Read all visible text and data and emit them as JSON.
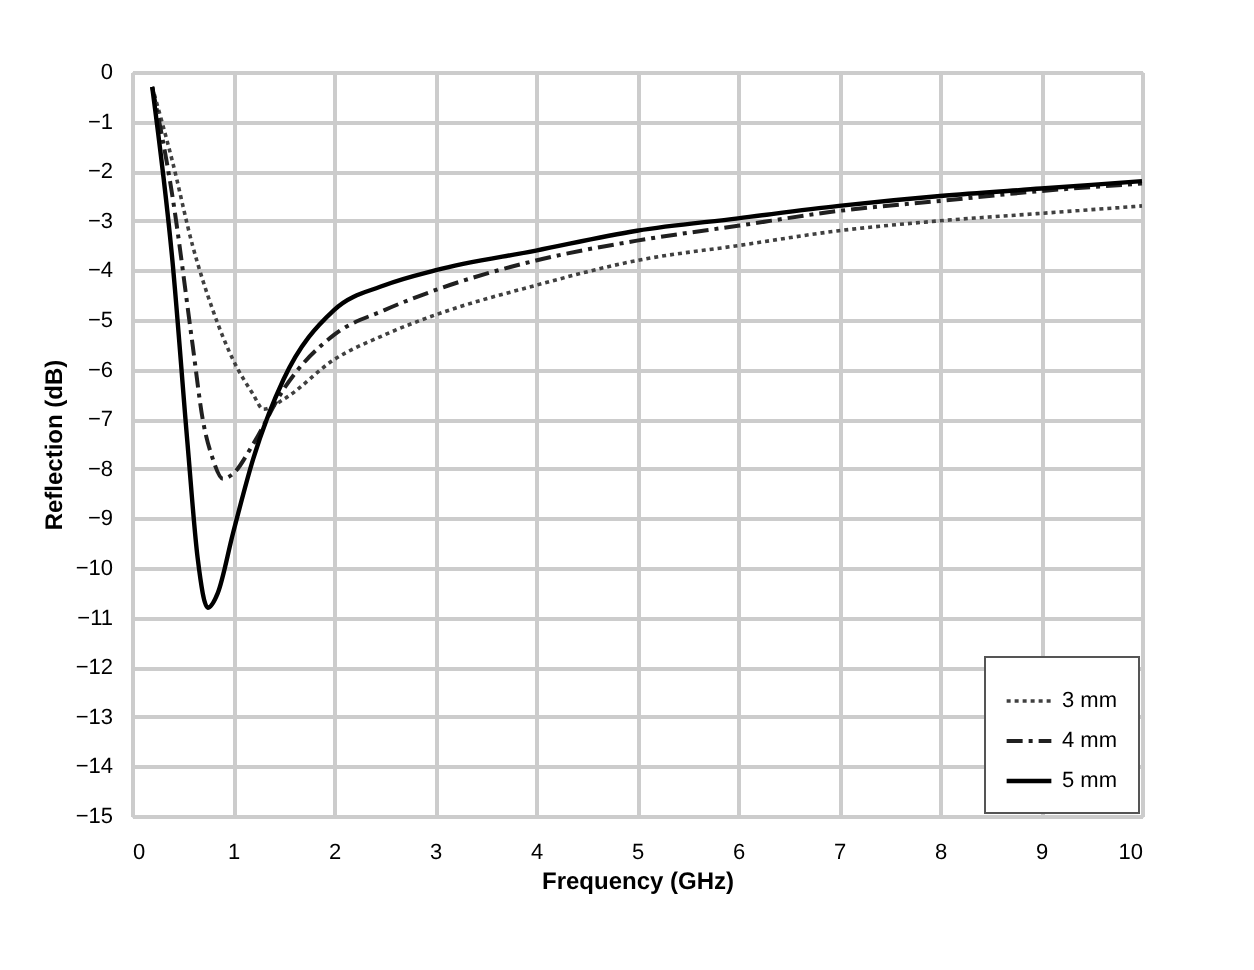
{
  "chart_data": {
    "type": "line",
    "xlabel": "Frequency (GHz)",
    "ylabel": "Reflection (dB)",
    "xlim": [
      0,
      10
    ],
    "xticks": [
      0,
      1,
      2,
      3,
      4,
      5,
      6,
      7,
      8,
      9,
      10
    ],
    "ylim": [
      -15,
      0
    ],
    "yticks": [
      0,
      -1,
      -2,
      -3,
      -4,
      -5,
      -6,
      -7,
      -8,
      -9,
      -10,
      -11,
      -12,
      -13,
      -14,
      -15
    ],
    "grid": true,
    "legend": "bottom right",
    "marker": "none",
    "series": [
      {
        "name": "3 mm",
        "color": "#404040",
        "line_style": "dotted",
        "x": [
          0.2,
          0.4,
          0.6,
          0.8,
          1.0,
          1.2,
          1.3,
          1.5,
          2,
          2.5,
          3,
          4,
          5,
          6,
          7,
          8,
          9,
          10
        ],
        "values": [
          -0.3,
          -1.8,
          -3.5,
          -4.8,
          -5.8,
          -6.5,
          -6.8,
          -6.6,
          -5.8,
          -5.3,
          -4.9,
          -4.3,
          -3.8,
          -3.5,
          -3.2,
          -3.0,
          -2.85,
          -2.7
        ]
      },
      {
        "name": "4 mm",
        "color": "#202020",
        "line_style": "dashdot",
        "x": [
          0.2,
          0.4,
          0.6,
          0.7,
          0.8,
          0.9,
          1.0,
          1.2,
          1.5,
          2,
          2.5,
          3,
          4,
          5,
          6,
          7,
          8,
          9,
          10
        ],
        "values": [
          -0.3,
          -2.5,
          -5.5,
          -7.0,
          -7.8,
          -8.2,
          -8.1,
          -7.5,
          -6.4,
          -5.3,
          -4.8,
          -4.4,
          -3.8,
          -3.4,
          -3.1,
          -2.8,
          -2.6,
          -2.4,
          -2.25
        ]
      },
      {
        "name": "5 mm",
        "color": "#000000",
        "line_style": "solid",
        "x": [
          0.2,
          0.4,
          0.55,
          0.65,
          0.75,
          0.85,
          1.0,
          1.2,
          1.5,
          2,
          2.5,
          3,
          4,
          5,
          6,
          7,
          8,
          9,
          10
        ],
        "values": [
          -0.3,
          -3.8,
          -7.5,
          -9.8,
          -10.8,
          -10.5,
          -9.3,
          -7.8,
          -6.2,
          -4.8,
          -4.3,
          -4.0,
          -3.6,
          -3.2,
          -2.95,
          -2.7,
          -2.5,
          -2.35,
          -2.2
        ]
      }
    ]
  }
}
